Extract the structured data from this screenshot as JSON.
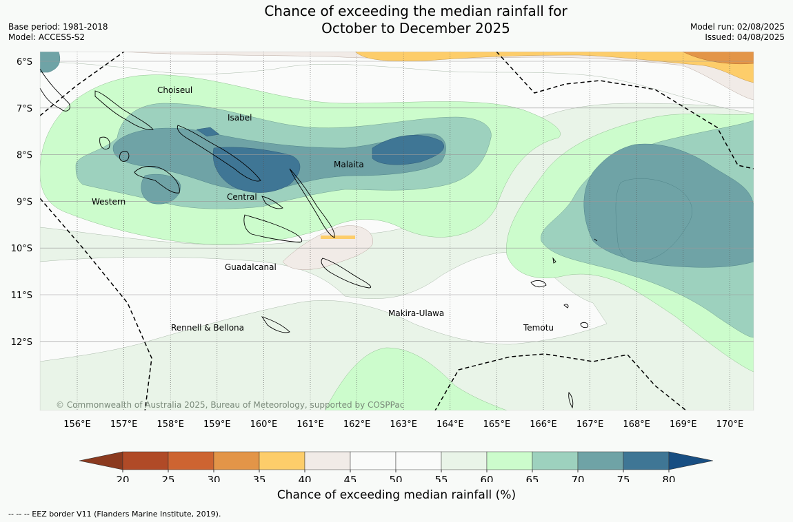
{
  "title": {
    "line1": "Chance of exceeding the median rainfall for",
    "line2": "October to December 2025"
  },
  "meta": {
    "base_period": "Base period: 1981-2018",
    "model": "Model: ACCESS-S2",
    "model_run": "Model run: 02/08/2025",
    "issued": "Issued: 04/08/2025"
  },
  "map": {
    "lat_labels": [
      "6°S",
      "7°S",
      "8°S",
      "9°S",
      "10°S",
      "11°S",
      "12°S"
    ],
    "lon_labels": [
      "156°E",
      "157°E",
      "158°E",
      "159°E",
      "160°E",
      "161°E",
      "162°E",
      "163°E",
      "164°E",
      "165°E",
      "166°E",
      "167°E",
      "168°E",
      "169°E",
      "170°E"
    ],
    "provinces": [
      "Choiseul",
      "Isabel",
      "Malaita",
      "Western",
      "Central",
      "Guadalcanal",
      "Makira-Ulawa",
      "Rennell & Bellona",
      "Temotu"
    ],
    "copyright": "© Commonwealth of Australia 2025, Bureau of Meteorology, supported by COSPPac",
    "show_eez": true,
    "show_gridlines": true
  },
  "colorbar": {
    "label": "Chance of exceeding median rainfall (%)",
    "ticks": [
      "20",
      "25",
      "30",
      "35",
      "40",
      "45",
      "50",
      "55",
      "60",
      "65",
      "70",
      "75",
      "80"
    ],
    "under_color": "#8b3a1f",
    "over_color": "#184e82",
    "colors": [
      "#b04a27",
      "#cd6431",
      "#e39548",
      "#fdcd6a",
      "#f1ebe7",
      "#fafbfa",
      "#fafbfa",
      "#e9f4e8",
      "#ccfccc",
      "#9dd1be",
      "#6fa3a6",
      "#3f7695"
    ]
  },
  "footer": {
    "eez_note": "--  --  -- EEZ border V11 (Flanders Marine Institute, 2019)."
  }
}
